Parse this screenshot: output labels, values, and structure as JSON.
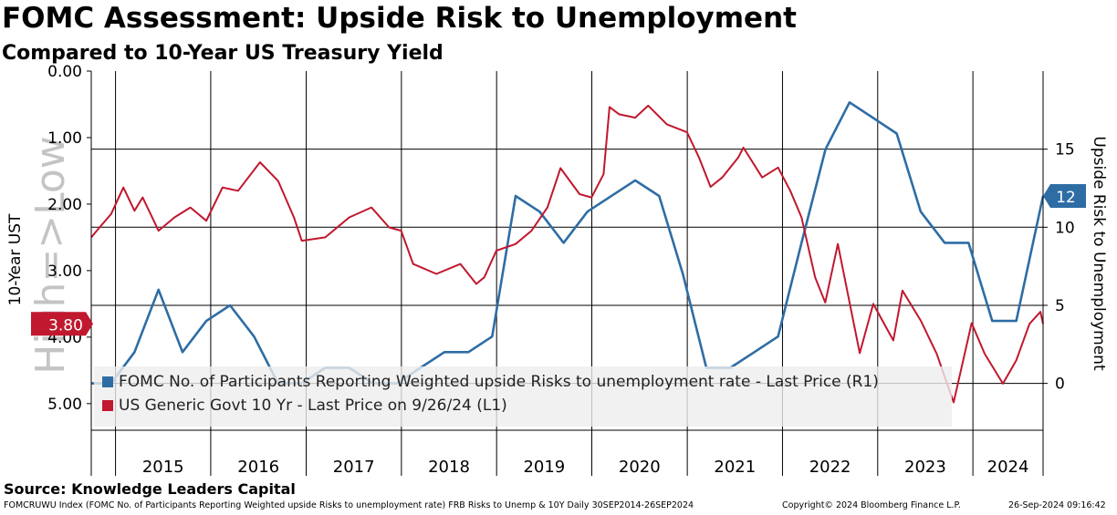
{
  "header": {
    "title": "FOMC Assessment: Upside Risk to Unemployment",
    "subtitle": "Compared to 10-Year US Treasury Yield"
  },
  "source": "Source: Knowledge Leaders Capital",
  "footer": {
    "index_info": "FOMCRUWU Index (FOMC No. of Participants Reporting Weighted upside Risks to unemployment rate) FRB Risks to Unemp & 10Y  Daily 30SEP2014-26SEP2024",
    "copyright": "Copyright© 2024 Bloomberg Finance L.P.",
    "timestamp": "26-Sep-2024 09:16:42"
  },
  "colors": {
    "fomc_series": "#2e6da4",
    "yield_series": "#c0182e",
    "grid": "#000000",
    "legend_bg": "#eeeeee",
    "watermark": "#c4c4c4"
  },
  "chart_data": {
    "type": "line",
    "xlabel": "",
    "x_years": [
      "2015",
      "2016",
      "2017",
      "2018",
      "2019",
      "2020",
      "2021",
      "2022",
      "2023",
      "2024"
    ],
    "x_range": [
      "2014-09-30",
      "2024-09-26"
    ],
    "left_axis": {
      "label": "10-Year UST",
      "inverted": true,
      "range": [
        0,
        5.4
      ],
      "ticks": [
        "0.00",
        "1.00",
        "2.00",
        "3.00",
        "4.00",
        "5.00"
      ],
      "tick_values": [
        0,
        1,
        2,
        3,
        4,
        5
      ],
      "watermark": "High=>Low"
    },
    "right_axis": {
      "label": "Upside Risk to Unemployment",
      "range": [
        -3,
        20
      ],
      "ticks": [
        "0",
        "5",
        "10",
        "15"
      ],
      "tick_values": [
        0,
        5,
        10,
        15
      ]
    },
    "last_value_flags": {
      "left": "3.80",
      "right": "12"
    },
    "legend": [
      "FOMC No. of Participants Reporting Weighted upside Risks to unemployment rate - Last Price (R1)",
      "US Generic Govt 10 Yr - Last Price on 9/26/24 (L1)"
    ],
    "series": [
      {
        "name": "FOMC No. of Participants Reporting Weighted upside Risks to unemployment rate - Last Price (R1)",
        "axis": "right",
        "points": [
          [
            "2014-09-30",
            0
          ],
          [
            "2014-12-15",
            0
          ],
          [
            "2015-03-15",
            2
          ],
          [
            "2015-06-15",
            6
          ],
          [
            "2015-09-15",
            2
          ],
          [
            "2015-12-15",
            4
          ],
          [
            "2016-03-15",
            5
          ],
          [
            "2016-06-15",
            3
          ],
          [
            "2016-09-15",
            0
          ],
          [
            "2016-12-15",
            0
          ],
          [
            "2017-03-15",
            1
          ],
          [
            "2017-06-15",
            1
          ],
          [
            "2017-09-15",
            0
          ],
          [
            "2017-12-15",
            0
          ],
          [
            "2018-03-15",
            1
          ],
          [
            "2018-06-15",
            2
          ],
          [
            "2018-09-15",
            2
          ],
          [
            "2018-12-15",
            3
          ],
          [
            "2019-03-15",
            12
          ],
          [
            "2019-06-15",
            11
          ],
          [
            "2019-09-15",
            9
          ],
          [
            "2019-12-15",
            11
          ],
          [
            "2020-06-15",
            13
          ],
          [
            "2020-09-15",
            12
          ],
          [
            "2020-12-15",
            7
          ],
          [
            "2021-03-15",
            1
          ],
          [
            "2021-06-15",
            1
          ],
          [
            "2021-09-15",
            2
          ],
          [
            "2021-12-15",
            3
          ],
          [
            "2022-03-15",
            9
          ],
          [
            "2022-06-15",
            15
          ],
          [
            "2022-09-15",
            18
          ],
          [
            "2022-12-15",
            17
          ],
          [
            "2023-03-15",
            16
          ],
          [
            "2023-06-15",
            11
          ],
          [
            "2023-09-15",
            9
          ],
          [
            "2023-12-15",
            9
          ],
          [
            "2024-03-15",
            4
          ],
          [
            "2024-06-15",
            4
          ],
          [
            "2024-09-26",
            12
          ]
        ]
      },
      {
        "name": "US Generic Govt 10 Yr - Last Price on 9/26/24 (L1)",
        "axis": "left",
        "points": [
          [
            "2014-09-30",
            2.5
          ],
          [
            "2014-11-01",
            2.35
          ],
          [
            "2014-12-15",
            2.15
          ],
          [
            "2015-01-31",
            1.75
          ],
          [
            "2015-03-15",
            2.1
          ],
          [
            "2015-04-15",
            1.9
          ],
          [
            "2015-06-15",
            2.4
          ],
          [
            "2015-08-15",
            2.2
          ],
          [
            "2015-10-15",
            2.05
          ],
          [
            "2015-12-15",
            2.25
          ],
          [
            "2016-02-15",
            1.75
          ],
          [
            "2016-04-15",
            1.8
          ],
          [
            "2016-07-08",
            1.37
          ],
          [
            "2016-09-15",
            1.65
          ],
          [
            "2016-11-15",
            2.2
          ],
          [
            "2016-12-15",
            2.55
          ],
          [
            "2017-03-15",
            2.5
          ],
          [
            "2017-06-15",
            2.2
          ],
          [
            "2017-09-08",
            2.05
          ],
          [
            "2017-11-15",
            2.35
          ],
          [
            "2017-12-31",
            2.4
          ],
          [
            "2018-02-15",
            2.9
          ],
          [
            "2018-05-15",
            3.05
          ],
          [
            "2018-08-15",
            2.9
          ],
          [
            "2018-10-15",
            3.2
          ],
          [
            "2018-11-15",
            3.1
          ],
          [
            "2018-12-31",
            2.7
          ],
          [
            "2019-03-15",
            2.6
          ],
          [
            "2019-05-15",
            2.4
          ],
          [
            "2019-07-15",
            2.05
          ],
          [
            "2019-09-03",
            1.46
          ],
          [
            "2019-11-15",
            1.85
          ],
          [
            "2019-12-31",
            1.9
          ],
          [
            "2020-02-15",
            1.55
          ],
          [
            "2020-03-09",
            0.54
          ],
          [
            "2020-04-15",
            0.65
          ],
          [
            "2020-06-15",
            0.7
          ],
          [
            "2020-08-04",
            0.52
          ],
          [
            "2020-10-15",
            0.8
          ],
          [
            "2020-12-31",
            0.92
          ],
          [
            "2021-02-15",
            1.3
          ],
          [
            "2021-03-31",
            1.74
          ],
          [
            "2021-05-15",
            1.6
          ],
          [
            "2021-07-15",
            1.3
          ],
          [
            "2021-08-04",
            1.15
          ],
          [
            "2021-10-15",
            1.6
          ],
          [
            "2021-12-15",
            1.45
          ],
          [
            "2022-01-31",
            1.8
          ],
          [
            "2022-03-15",
            2.2
          ],
          [
            "2022-05-06",
            3.1
          ],
          [
            "2022-06-14",
            3.48
          ],
          [
            "2022-08-01",
            2.6
          ],
          [
            "2022-10-24",
            4.24
          ],
          [
            "2022-12-15",
            3.5
          ],
          [
            "2023-03-02",
            4.05
          ],
          [
            "2023-04-06",
            3.3
          ],
          [
            "2023-06-15",
            3.75
          ],
          [
            "2023-08-15",
            4.25
          ],
          [
            "2023-10-19",
            4.98
          ],
          [
            "2023-12-27",
            3.79
          ],
          [
            "2024-02-15",
            4.25
          ],
          [
            "2024-04-25",
            4.7
          ],
          [
            "2024-06-15",
            4.35
          ],
          [
            "2024-08-05",
            3.8
          ],
          [
            "2024-09-16",
            3.62
          ],
          [
            "2024-09-26",
            3.8
          ]
        ]
      }
    ],
    "grid": true,
    "legend_position": "bottom-left"
  }
}
